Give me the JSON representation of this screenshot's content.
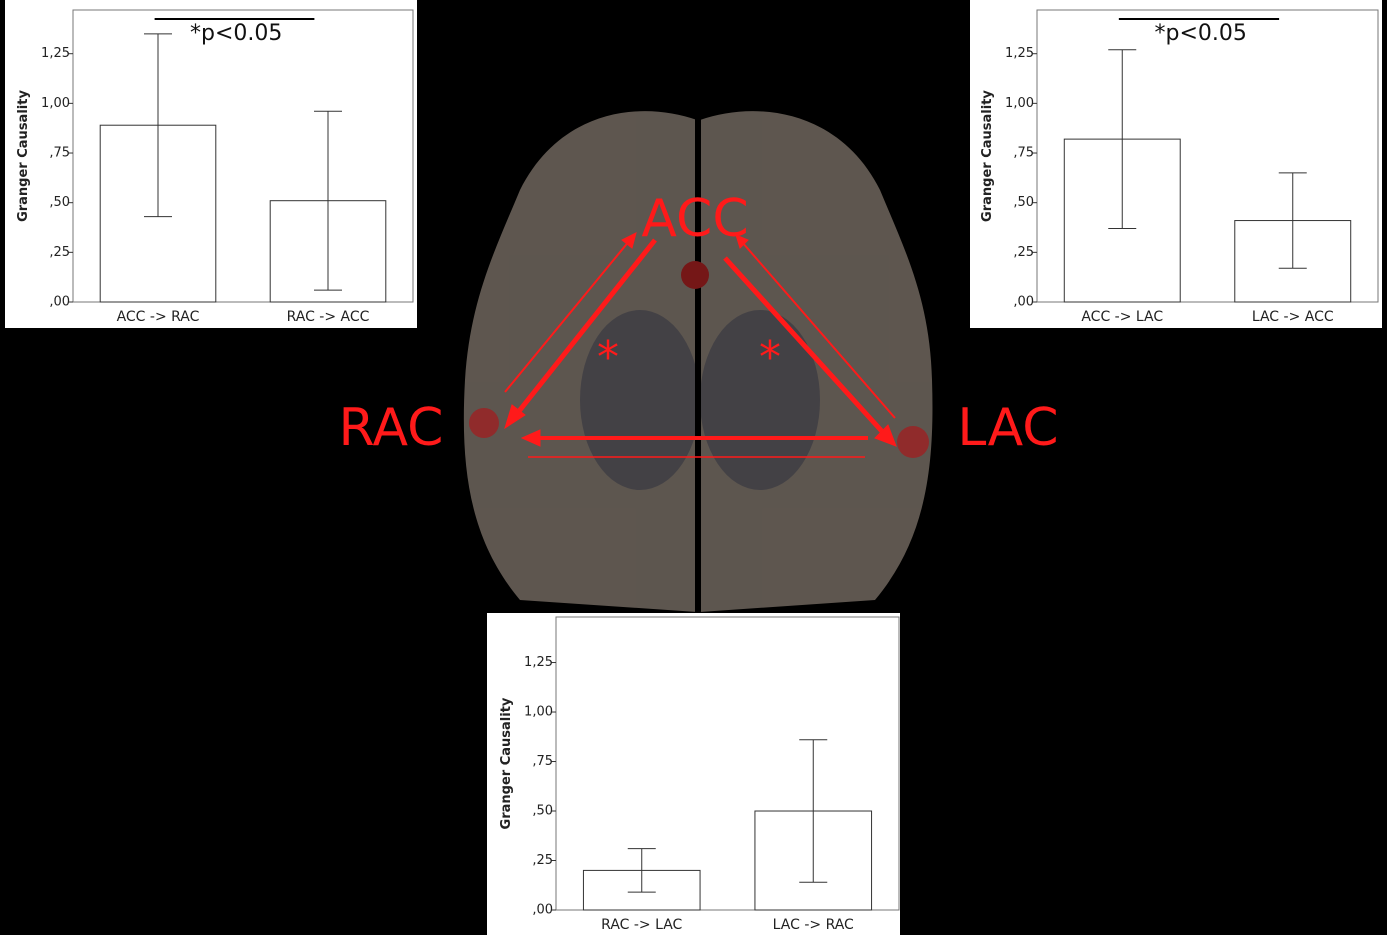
{
  "chart_data": [
    {
      "type": "bar",
      "y_label": "Granger Causality",
      "annotation": "*p<0.05",
      "categories": [
        "ACC -> RAC",
        "RAC -> ACC"
      ],
      "values": [
        0.89,
        0.51
      ],
      "errors": [
        0.46,
        0.45
      ],
      "color": "#ffffff",
      "ylim": [
        0,
        1.47
      ],
      "yticks": [
        {
          "value": 0,
          "label": ",00"
        },
        {
          "value": 0.25,
          "label": ",25"
        },
        {
          "value": 0.5,
          "label": ",50"
        },
        {
          "value": 0.75,
          "label": ",75"
        },
        {
          "value": 1,
          "label": "1,00"
        },
        {
          "value": 1.25,
          "label": "1,25"
        }
      ]
    },
    {
      "type": "bar",
      "y_label": "Granger Causality",
      "annotation": "*p<0.05",
      "categories": [
        "ACC -> LAC",
        "LAC -> ACC"
      ],
      "values": [
        0.82,
        0.41
      ],
      "errors": [
        0.45,
        0.24
      ],
      "color": "#ffffff",
      "ylim": [
        0,
        1.47
      ],
      "yticks": [
        {
          "value": 0,
          "label": ",00"
        },
        {
          "value": 0.25,
          "label": ",25"
        },
        {
          "value": 0.5,
          "label": ",50"
        },
        {
          "value": 0.75,
          "label": ",75"
        },
        {
          "value": 1,
          "label": "1,00"
        },
        {
          "value": 1.25,
          "label": "1,25"
        }
      ]
    },
    {
      "type": "bar",
      "y_label": "Granger Causality",
      "categories": [
        "RAC -> LAC",
        "LAC -> RAC"
      ],
      "values": [
        0.2,
        0.5
      ],
      "errors": [
        0.11,
        0.36
      ],
      "color": "#ffffff",
      "ylim": [
        0,
        1.48
      ],
      "yticks": [
        {
          "value": 0,
          "label": ",00"
        },
        {
          "value": 0.25,
          "label": ",25"
        },
        {
          "value": 0.5,
          "label": ",50"
        },
        {
          "value": 0.75,
          "label": ",75"
        },
        {
          "value": 1,
          "label": "1,00"
        },
        {
          "value": 1.25,
          "label": "1,25"
        }
      ]
    }
  ],
  "diagram": {
    "nodes": [
      "ACC",
      "RAC",
      "LAC"
    ],
    "markers": [
      "*",
      "*"
    ]
  }
}
